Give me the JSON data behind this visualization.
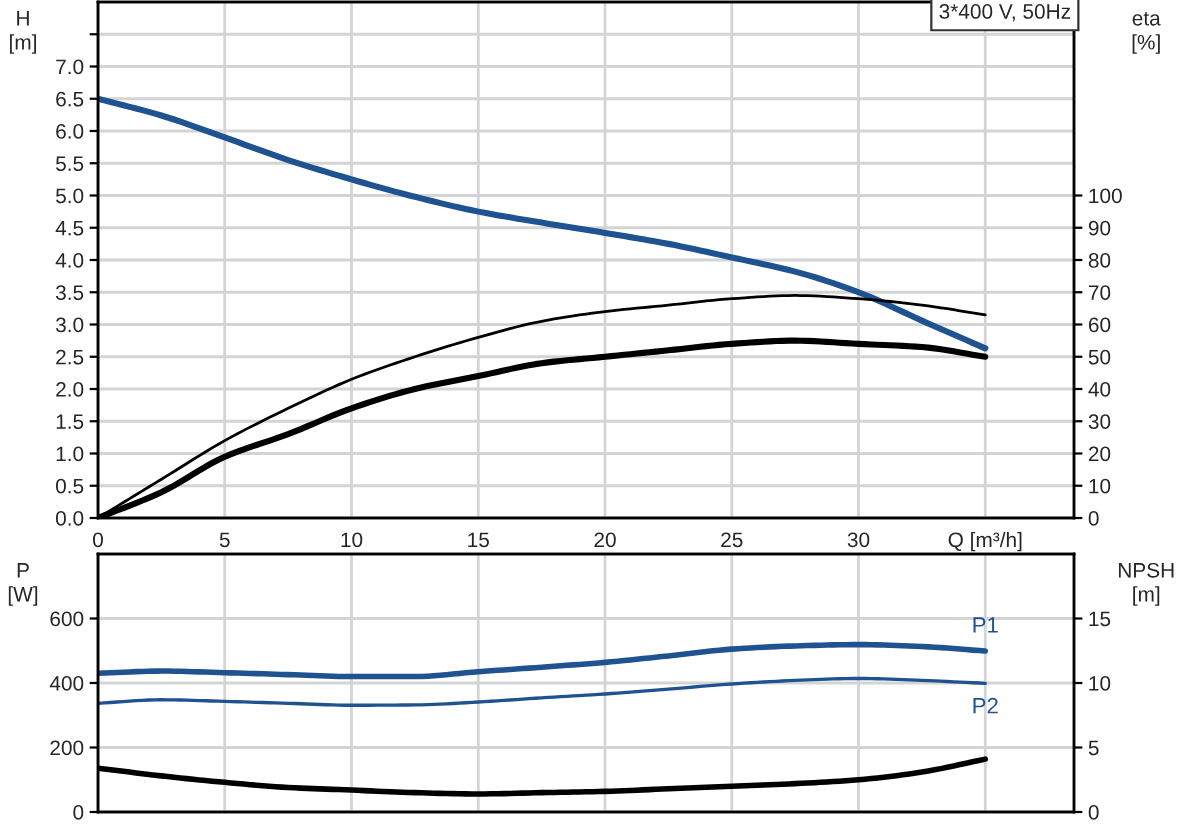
{
  "chart_data": [
    {
      "type": "line",
      "title": "3*400 V, 50Hz",
      "ylabel": "H [m]",
      "y2label": "eta [%]",
      "x": [
        0,
        2.5,
        5,
        7.5,
        10,
        12.5,
        15,
        17.5,
        20,
        22.5,
        25,
        27.5,
        30,
        32.5,
        35
      ],
      "xlim": [
        0,
        38.5
      ],
      "xticks": [
        0,
        5,
        10,
        15,
        20,
        25,
        30,
        {
          "value": 35,
          "label": "Q [m³/h]"
        }
      ],
      "ylim": [
        0,
        8
      ],
      "yticks": [
        {
          "value": 0,
          "label": "0.0"
        },
        0.5,
        {
          "value": 1,
          "label": "1.0"
        },
        1.5,
        {
          "value": 2,
          "label": "2.0"
        },
        2.5,
        {
          "value": 3,
          "label": "3.0"
        },
        3.5,
        {
          "value": 4,
          "label": "4.0"
        },
        4.5,
        {
          "value": 5,
          "label": "5.0"
        },
        5.5,
        {
          "value": 6,
          "label": "6.0"
        },
        6.5,
        {
          "value": 7,
          "label": "7.0"
        },
        {
          "value": 7.5,
          "label": null
        }
      ],
      "y2lim": [
        0,
        160
      ],
      "y2ticks": [
        0,
        10,
        20,
        30,
        40,
        50,
        60,
        70,
        80,
        90,
        100
      ],
      "grid": true,
      "series": [
        {
          "color": "#1f5290",
          "values": [
            6.5,
            6.24,
            5.9,
            5.55,
            5.25,
            4.98,
            4.75,
            4.58,
            4.42,
            4.25,
            4.04,
            3.82,
            3.5,
            3.06,
            2.63
          ]
        },
        {
          "color": "#000000",
          "axis": "y2",
          "values": [
            0,
            12,
            24,
            34,
            43,
            50,
            56,
            61,
            64,
            66,
            68,
            69,
            68,
            66,
            63
          ]
        },
        {
          "color": "#000000",
          "axis": "y2",
          "values": [
            0,
            8,
            19,
            26,
            34,
            40,
            44,
            48,
            50,
            52,
            54,
            55,
            54,
            53,
            50
          ]
        }
      ]
    },
    {
      "type": "line",
      "ylabel": "P [W]",
      "y2label": "NPSH [m]",
      "x": [
        0,
        2.5,
        5,
        7.5,
        10,
        12.5,
        15,
        17.5,
        20,
        22.5,
        25,
        27.5,
        30,
        32.5,
        35
      ],
      "xlim": [
        0,
        38.5
      ],
      "xticks": [
        0,
        5,
        10,
        15,
        20,
        25,
        30,
        35
      ],
      "ylim": [
        0,
        800
      ],
      "yticks": [
        0,
        200,
        400,
        600
      ],
      "y2lim": [
        0,
        20
      ],
      "y2ticks": [
        0,
        5,
        10,
        15
      ],
      "grid": true,
      "tick_labels": "y",
      "series": [
        {
          "name": "P1",
          "color": "#1f5290",
          "values": [
            430,
            437,
            432,
            426,
            420,
            420,
            435,
            449,
            464,
            484,
            505,
            515,
            519,
            513,
            499
          ]
        },
        {
          "name": "P2",
          "color": "#1f5290",
          "values": [
            337,
            348,
            343,
            337,
            331,
            332,
            341,
            354,
            366,
            381,
            397,
            408,
            414,
            408,
            399
          ]
        },
        {
          "color": "#000000",
          "axis": "y2",
          "values": [
            3.4,
            2.8,
            2.3,
            1.9,
            1.7,
            1.5,
            1.4,
            1.5,
            1.6,
            1.8,
            2.0,
            2.2,
            2.5,
            3.1,
            4.1
          ]
        }
      ]
    }
  ]
}
